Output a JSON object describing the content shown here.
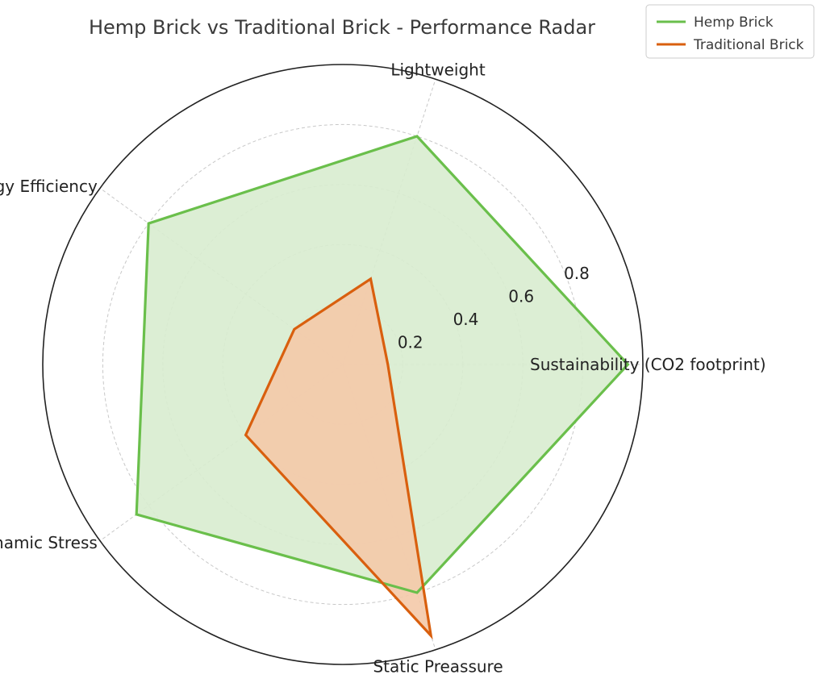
{
  "chart_data": {
    "type": "radar",
    "title": "Hemp Brick vs Traditional Brick - Performance Radar",
    "axes": [
      "Sustainability (CO2 footprint)",
      "Lightweight",
      "Energy Efficiency",
      "Dynamic Stress",
      "Static Preassure"
    ],
    "rlim": [
      0,
      1.0
    ],
    "r_ticks": [
      0.2,
      0.4,
      0.6,
      0.8
    ],
    "r_tick_labels": [
      "0.2",
      "0.4",
      "0.6",
      "0.8"
    ],
    "grid": true,
    "legend_position": "top-right",
    "series": [
      {
        "name": "Hemp Brick",
        "values": [
          0.95,
          0.8,
          0.8,
          0.85,
          0.8
        ],
        "color": "#6abf4b",
        "fill": "#d8eccf"
      },
      {
        "name": "Traditional Brick",
        "values": [
          0.15,
          0.3,
          0.2,
          0.4,
          0.95
        ],
        "color": "#d95f0e",
        "fill": "#f4c9a8"
      }
    ]
  }
}
